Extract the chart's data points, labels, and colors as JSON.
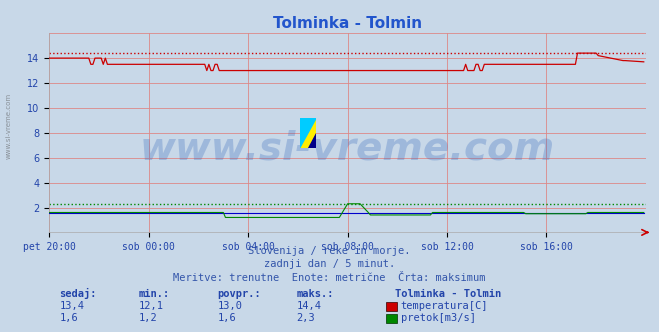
{
  "title": "Tolminka - Tolmin",
  "title_color": "#2255cc",
  "bg_color": "#c8d8e8",
  "plot_bg_color": "#c8d8e8",
  "x_labels": [
    "pet 20:00",
    "sob 00:00",
    "sob 04:00",
    "sob 08:00",
    "sob 12:00",
    "sob 16:00"
  ],
  "x_ticks_idx": [
    0,
    48,
    96,
    144,
    192,
    240
  ],
  "x_max": 288,
  "y_min": 0,
  "y_max": 16,
  "y_label_vals": [
    2,
    4,
    6,
    8,
    10,
    12,
    14
  ],
  "y_grid_vals": [
    2,
    4,
    6,
    8,
    10,
    12,
    14,
    16
  ],
  "temp_max_line": 14.4,
  "flow_max_line": 2.3,
  "grid_color": "#dd8888",
  "temp_color": "#cc0000",
  "flow_color": "#008800",
  "height_color": "#0000cc",
  "watermark_text": "www.si-vreme.com",
  "watermark_color": "#3366bb",
  "watermark_alpha": 0.28,
  "watermark_fontsize": 28,
  "subtitle1": "Slovenija / reke in morje.",
  "subtitle2": "zadnji dan / 5 minut.",
  "subtitle3": "Meritve: trenutne  Enote: metrične  Črta: maksimum",
  "subtitle_color": "#3355aa",
  "table_headers": [
    "sedaj:",
    "min.:",
    "povpr.:",
    "maks.:"
  ],
  "table_header_color": "#2244aa",
  "temp_row": [
    "13,4",
    "12,1",
    "13,0",
    "14,4"
  ],
  "flow_row": [
    "1,6",
    "1,2",
    "1,6",
    "2,3"
  ],
  "table_station": "Tolminka - Tolmin",
  "table_color": "#2244aa",
  "legend_temp": "temperatura[C]",
  "legend_flow": "pretok[m3/s]",
  "legend_color": "#2244aa",
  "tick_color": "#2244aa",
  "tick_fontsize": 7,
  "figsize": [
    6.59,
    3.32
  ],
  "dpi": 100,
  "left_label": "www.si-vreme.com"
}
